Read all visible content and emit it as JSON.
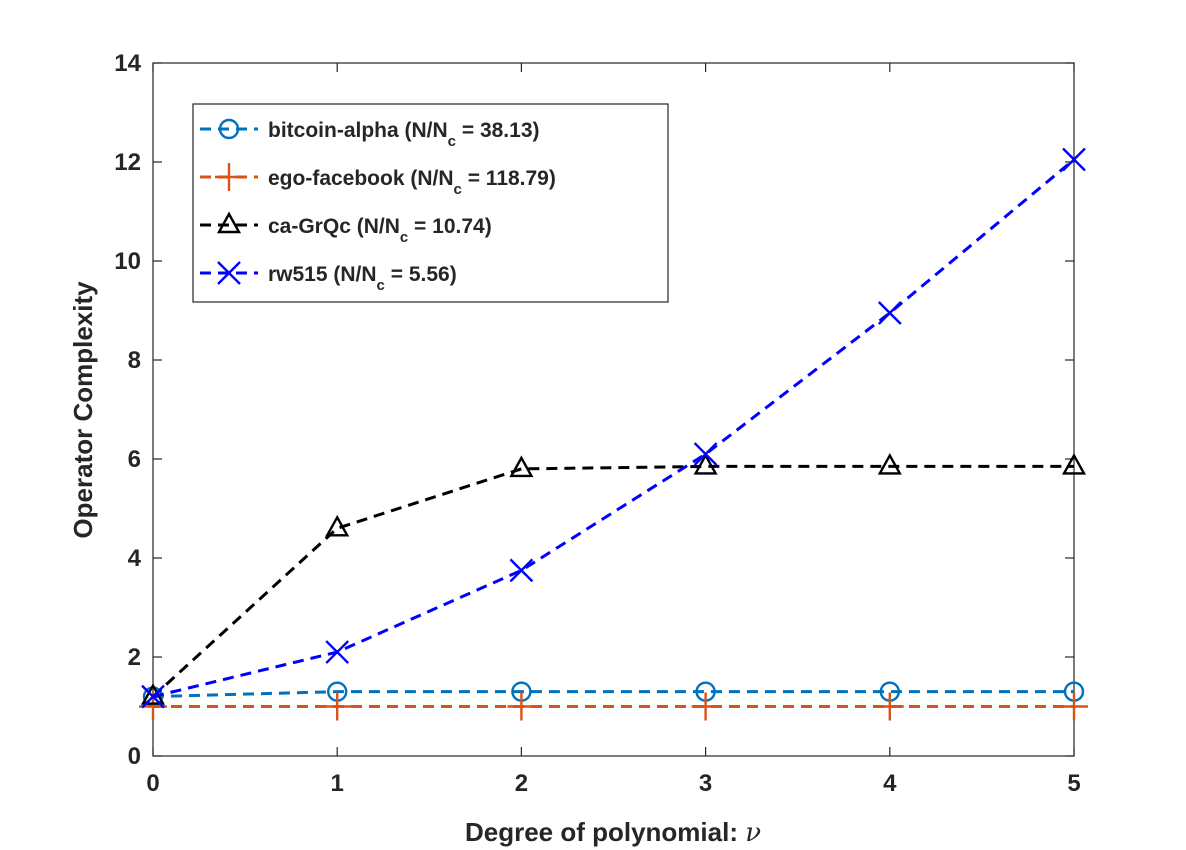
{
  "chart_data": {
    "type": "line",
    "title": "",
    "xlabel": "Degree of polynomial: ",
    "xlabel_symbol": "ν",
    "ylabel": "Operator Complexity",
    "xlim": [
      0,
      5
    ],
    "ylim": [
      0,
      14
    ],
    "xticks": [
      "0",
      "1",
      "2",
      "3",
      "4",
      "5"
    ],
    "yticks": [
      "0",
      "2",
      "4",
      "6",
      "8",
      "10",
      "12",
      "14"
    ],
    "x": [
      0,
      1,
      2,
      3,
      4,
      5
    ],
    "legend_position": "top-left",
    "series": [
      {
        "name": "bitcoin-alpha",
        "legend_prefix": "bitcoin-alpha (N/N",
        "legend_sub": "c",
        "legend_suffix": " = 38.13)",
        "color": "#0072BD",
        "marker": "circle",
        "values": [
          1.2,
          1.3,
          1.3,
          1.3,
          1.3,
          1.3
        ]
      },
      {
        "name": "ego-facebook",
        "legend_prefix": "ego-facebook (N/N",
        "legend_sub": "c",
        "legend_suffix": " = 118.79)",
        "color": "#D95319",
        "marker": "plus",
        "values": [
          1.0,
          1.0,
          1.0,
          1.0,
          1.0,
          1.0
        ]
      },
      {
        "name": "ca-GrQc",
        "legend_prefix": "ca-GrQc (N/N",
        "legend_sub": "c",
        "legend_suffix": " = 10.74)",
        "color": "#000000",
        "marker": "triangle",
        "values": [
          1.2,
          4.6,
          5.8,
          5.85,
          5.85,
          5.85
        ]
      },
      {
        "name": "rw515",
        "legend_prefix": "rw515 (N/N",
        "legend_sub": "c",
        "legend_suffix": " = 5.56)",
        "color": "#0000FF",
        "marker": "x",
        "values": [
          1.2,
          2.1,
          3.75,
          6.1,
          8.95,
          12.05
        ]
      }
    ]
  }
}
